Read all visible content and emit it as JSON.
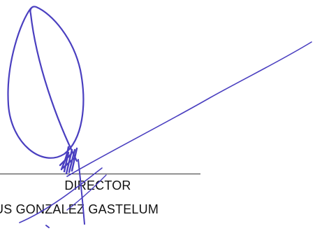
{
  "signature_block": {
    "title": "DIRECTOR",
    "name": "US GONZALEZ GASTELUM"
  },
  "colors": {
    "ink": "#4a3fc0",
    "text": "#111111",
    "rule": "#333333"
  }
}
